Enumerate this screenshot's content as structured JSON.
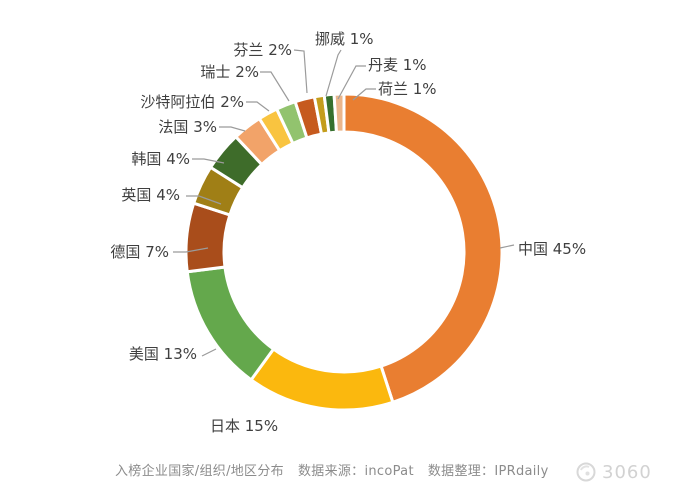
{
  "chart_data": {
    "type": "pie",
    "subtype": "donut",
    "title": "入榜企业国家/组织/地区分布",
    "unit": "%",
    "start_angle_deg": 0,
    "direction": "clockwise",
    "legend_position": "none",
    "slices": [
      {
        "label": "中国",
        "pct": 45,
        "color": "#E97E31"
      },
      {
        "label": "日本",
        "pct": 15,
        "color": "#FBB80E"
      },
      {
        "label": "美国",
        "pct": 13,
        "color": "#64A84C"
      },
      {
        "label": "德国",
        "pct": 7,
        "color": "#A94D1B"
      },
      {
        "label": "英国",
        "pct": 4,
        "color": "#A07F16"
      },
      {
        "label": "韩国",
        "pct": 4,
        "color": "#3E6C2A"
      },
      {
        "label": "法国",
        "pct": 3,
        "color": "#F2A369"
      },
      {
        "label": "沙特阿拉伯",
        "pct": 2,
        "color": "#F9C440"
      },
      {
        "label": "瑞士",
        "pct": 2,
        "color": "#92C36E"
      },
      {
        "label": "芬兰",
        "pct": 2,
        "color": "#C65A1E"
      },
      {
        "label": "挪威",
        "pct": 1,
        "color": "#C49D1C"
      },
      {
        "label": "丹麦",
        "pct": 1,
        "color": "#36702E"
      },
      {
        "label": "荷兰",
        "pct": 1,
        "color": "#EBB68C"
      }
    ]
  },
  "caption": {
    "chart_name": "入榜企业国家/组织/地区分布",
    "source": "数据来源：incoPat",
    "curator": "数据整理：IPRdaily"
  },
  "watermark": {
    "text": "3060"
  },
  "colors": {
    "background": "#FFFFFF",
    "slice_label": "#3F3F3F",
    "leader_line": "#9B9B9B",
    "slice_gap": "#FFFFFF",
    "caption_text": "#8C8C8C",
    "watermark_text": "#D2D2D2"
  }
}
